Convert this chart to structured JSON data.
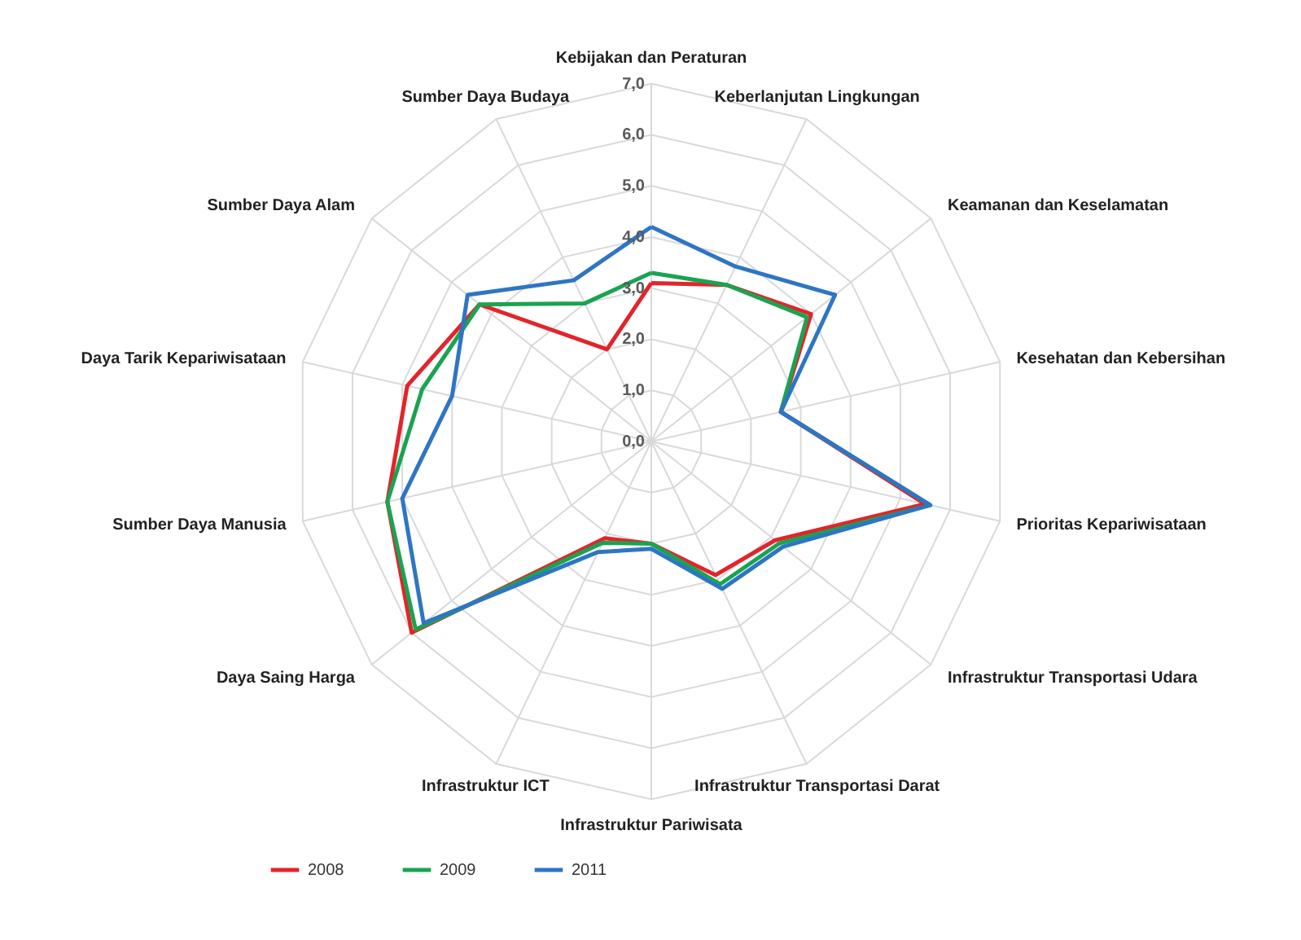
{
  "chart_data": {
    "type": "radar",
    "categories": [
      "Kebijakan dan Peraturan",
      "Keberlanjutan Lingkungan",
      "Keamanan dan Keselamatan",
      "Kesehatan dan Kebersihan",
      "Prioritas Kepariwisataan",
      "Infrastruktur Transportasi Udara",
      "Infrastruktur Transportasi Darat",
      "Infrastruktur Pariwisata",
      "Infrastruktur ICT",
      "Daya Saing Harga",
      "Sumber Daya Manusia",
      "Daya Tarik Kepariwisataan",
      "Sumber Daya Alam",
      "Sumber Daya Budaya"
    ],
    "series": [
      {
        "name": "2008",
        "color": "#e3242b",
        "values": [
          3.1,
          3.4,
          4.0,
          2.6,
          5.5,
          3.1,
          2.9,
          2.0,
          2.1,
          6.0,
          5.3,
          4.9,
          4.3,
          2.0
        ]
      },
      {
        "name": "2009",
        "color": "#1aa352",
        "values": [
          3.3,
          3.4,
          3.9,
          2.6,
          5.6,
          3.2,
          3.1,
          2.0,
          2.2,
          5.9,
          5.3,
          4.6,
          4.3,
          3.0
        ]
      },
      {
        "name": "2011",
        "color": "#2e75c4",
        "values": [
          4.2,
          3.8,
          4.6,
          2.6,
          5.6,
          3.3,
          3.2,
          2.1,
          2.4,
          5.7,
          5.0,
          4.0,
          4.6,
          3.5
        ]
      }
    ],
    "ylim": [
      0,
      7
    ],
    "yticks": [
      {
        "value": 0,
        "label": "0,0"
      },
      {
        "value": 1,
        "label": "1,0"
      },
      {
        "value": 2,
        "label": "2,0"
      },
      {
        "value": 3,
        "label": "3,0"
      },
      {
        "value": 4,
        "label": "4,0"
      },
      {
        "value": 5,
        "label": "5,0"
      },
      {
        "value": 6,
        "label": "6,0"
      },
      {
        "value": 7,
        "label": "7,0"
      }
    ],
    "grid": true,
    "legend": "bottom",
    "line_style": "solid"
  }
}
